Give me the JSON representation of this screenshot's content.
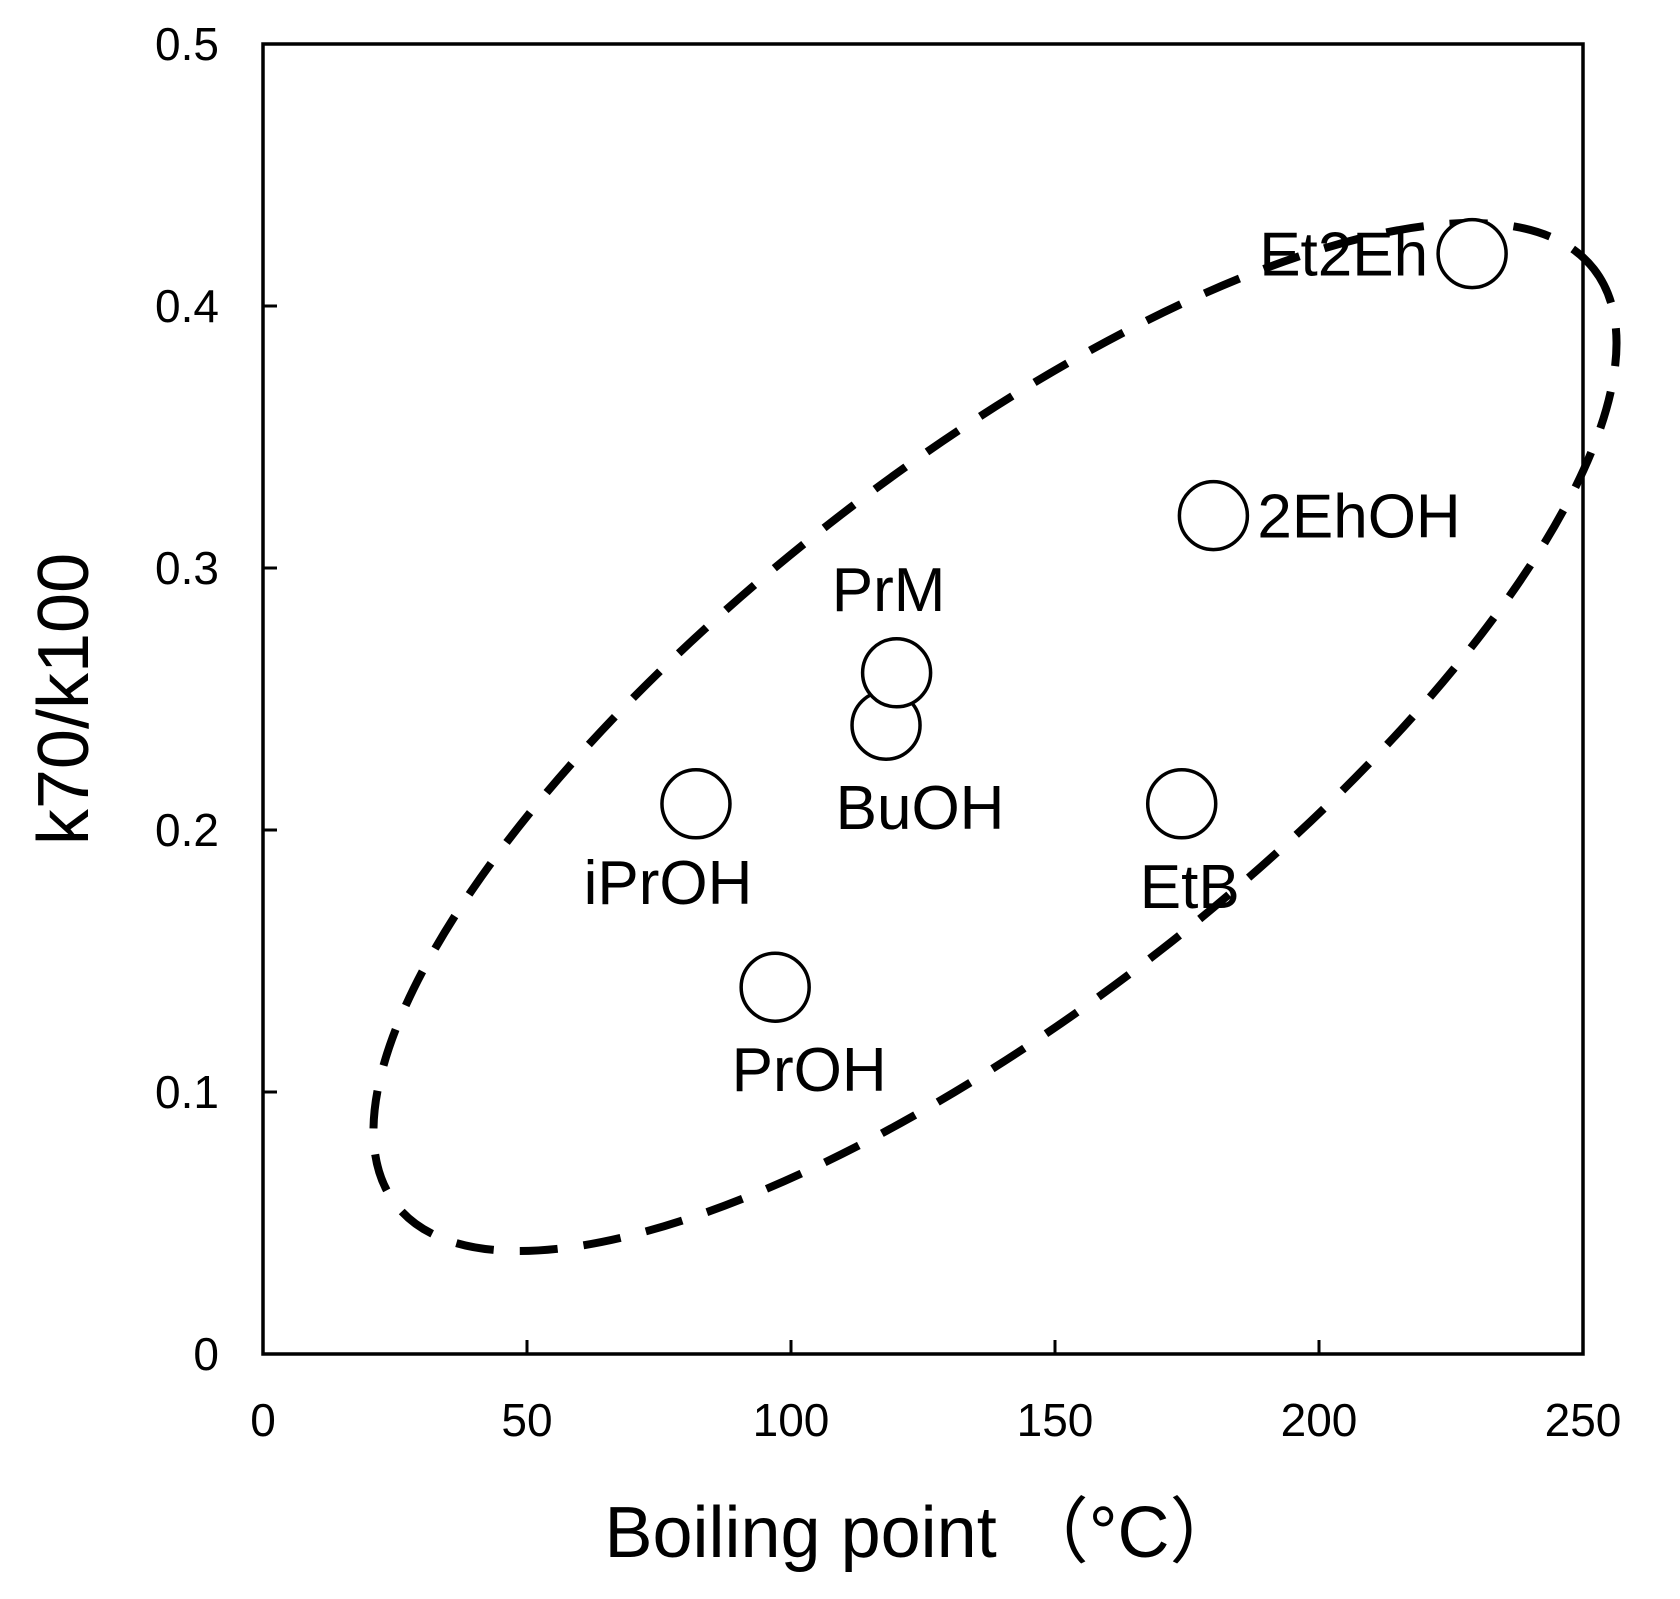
{
  "chart_data": {
    "type": "scatter",
    "title": "",
    "xlabel": "Boiling point （°C）",
    "ylabel": "k70/k100",
    "xlim": [
      0,
      250
    ],
    "ylim": [
      0,
      0.5
    ],
    "x_ticks": [
      0,
      50,
      100,
      150,
      200,
      250
    ],
    "y_ticks": [
      0,
      0.1,
      0.2,
      0.3,
      0.4,
      0.5
    ],
    "x_tick_labels": [
      "0",
      "50",
      "100",
      "150",
      "200",
      "250"
    ],
    "y_tick_labels": [
      "0",
      "0.1",
      "0.2",
      "0.3",
      "0.4",
      "0.5"
    ],
    "grid": false,
    "marker": "open-circle",
    "points": [
      {
        "label": "iPrOH",
        "x": 82,
        "y": 0.21,
        "label_pos": "below-left"
      },
      {
        "label": "PrOH",
        "x": 97,
        "y": 0.14,
        "label_pos": "below-right"
      },
      {
        "label": "BuOH",
        "x": 118,
        "y": 0.24,
        "label_pos": "below-right"
      },
      {
        "label": "PrM",
        "x": 120,
        "y": 0.26,
        "label_pos": "above"
      },
      {
        "label": "EtB",
        "x": 174,
        "y": 0.21,
        "label_pos": "below"
      },
      {
        "label": "2EhOH",
        "x": 180,
        "y": 0.32,
        "label_pos": "right"
      },
      {
        "label": "Et2Eh",
        "x": 229,
        "y": 0.42,
        "label_pos": "left"
      }
    ],
    "annotations": [
      {
        "type": "dashed-ellipse",
        "description": "encloses all points along a rising diagonal"
      }
    ]
  }
}
